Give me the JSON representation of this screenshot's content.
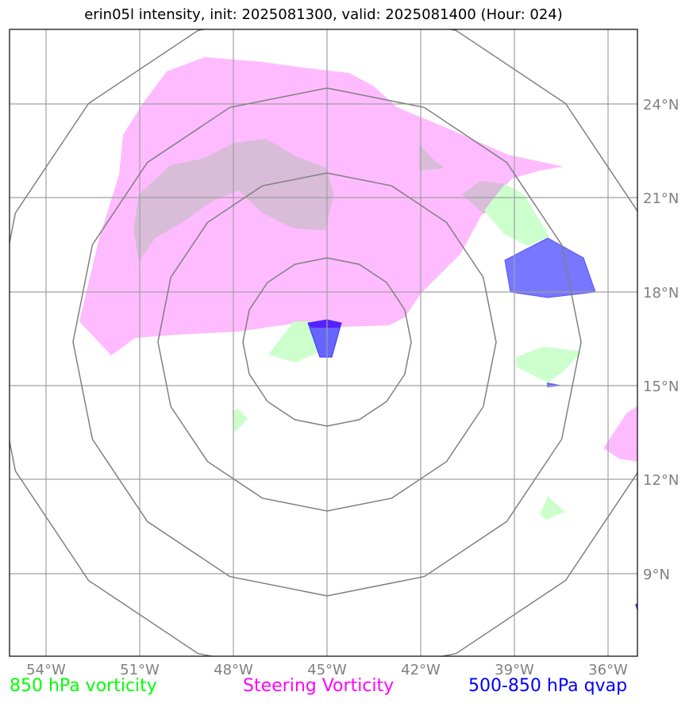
{
  "title": "erin05l intensity, init: 2025081300, valid: 2025081400 (Hour: 024)",
  "x_ticks": [
    "54°W",
    "51°W",
    "48°W",
    "45°W",
    "42°W",
    "39°W",
    "36°W"
  ],
  "y_ticks": [
    "24°N",
    "21°N",
    "18°N",
    "15°N",
    "12°N",
    "9°N"
  ],
  "legend": [
    {
      "label": "850 hPa vorticity",
      "color": "#00ff00"
    },
    {
      "label": "Steering Vorticity",
      "color": "#ff00ff"
    },
    {
      "label": "500-850 hPa qvap",
      "color": "#0000ff"
    }
  ],
  "colors": {
    "vorticity_fill": "#ccffcc",
    "steering_fill": "#ffbbff",
    "steering_overlap": "#d8bcd8",
    "qvap_fill": "#7777ff",
    "qvap_edge": "#3333ff",
    "range_rings": "#808080",
    "gridlines": "#a0a0a0",
    "tick_text": "#808080"
  }
}
